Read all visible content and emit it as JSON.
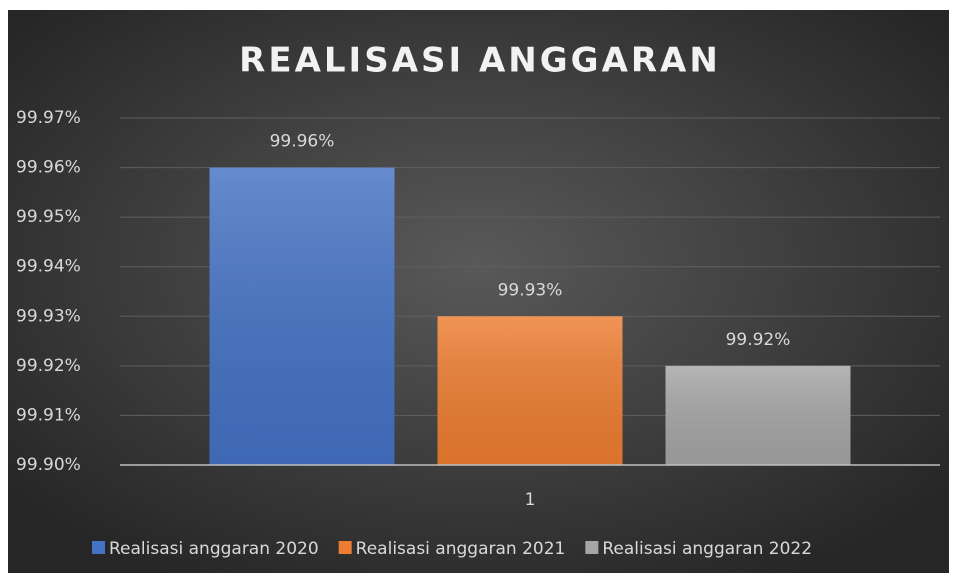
{
  "chart_data": {
    "type": "bar",
    "title": "REALISASI ANGGARAN",
    "categories": [
      "1"
    ],
    "series": [
      {
        "name": "Realisasi anggaran 2020",
        "color": "#4472c4",
        "values": [
          99.96
        ],
        "value_labels": [
          "99.96%"
        ]
      },
      {
        "name": "Realisasi anggaran 2021",
        "color": "#ed7d31",
        "values": [
          99.93
        ],
        "value_labels": [
          "99.93%"
        ]
      },
      {
        "name": "Realisasi anggaran 2022",
        "color": "#a5a5a5",
        "values": [
          99.92
        ],
        "value_labels": [
          "99.92%"
        ]
      }
    ],
    "ylim": [
      99.9,
      99.97
    ],
    "yticks": [
      {
        "value": 99.9,
        "label": "99.90%"
      },
      {
        "value": 99.91,
        "label": "99.91%"
      },
      {
        "value": 99.92,
        "label": "99.92%"
      },
      {
        "value": 99.93,
        "label": "99.93%"
      },
      {
        "value": 99.94,
        "label": "99.94%"
      },
      {
        "value": 99.95,
        "label": "99.95%"
      },
      {
        "value": 99.96,
        "label": "99.96%"
      },
      {
        "value": 99.97,
        "label": "99.97%"
      }
    ],
    "grid": true,
    "legend": "bottom"
  }
}
